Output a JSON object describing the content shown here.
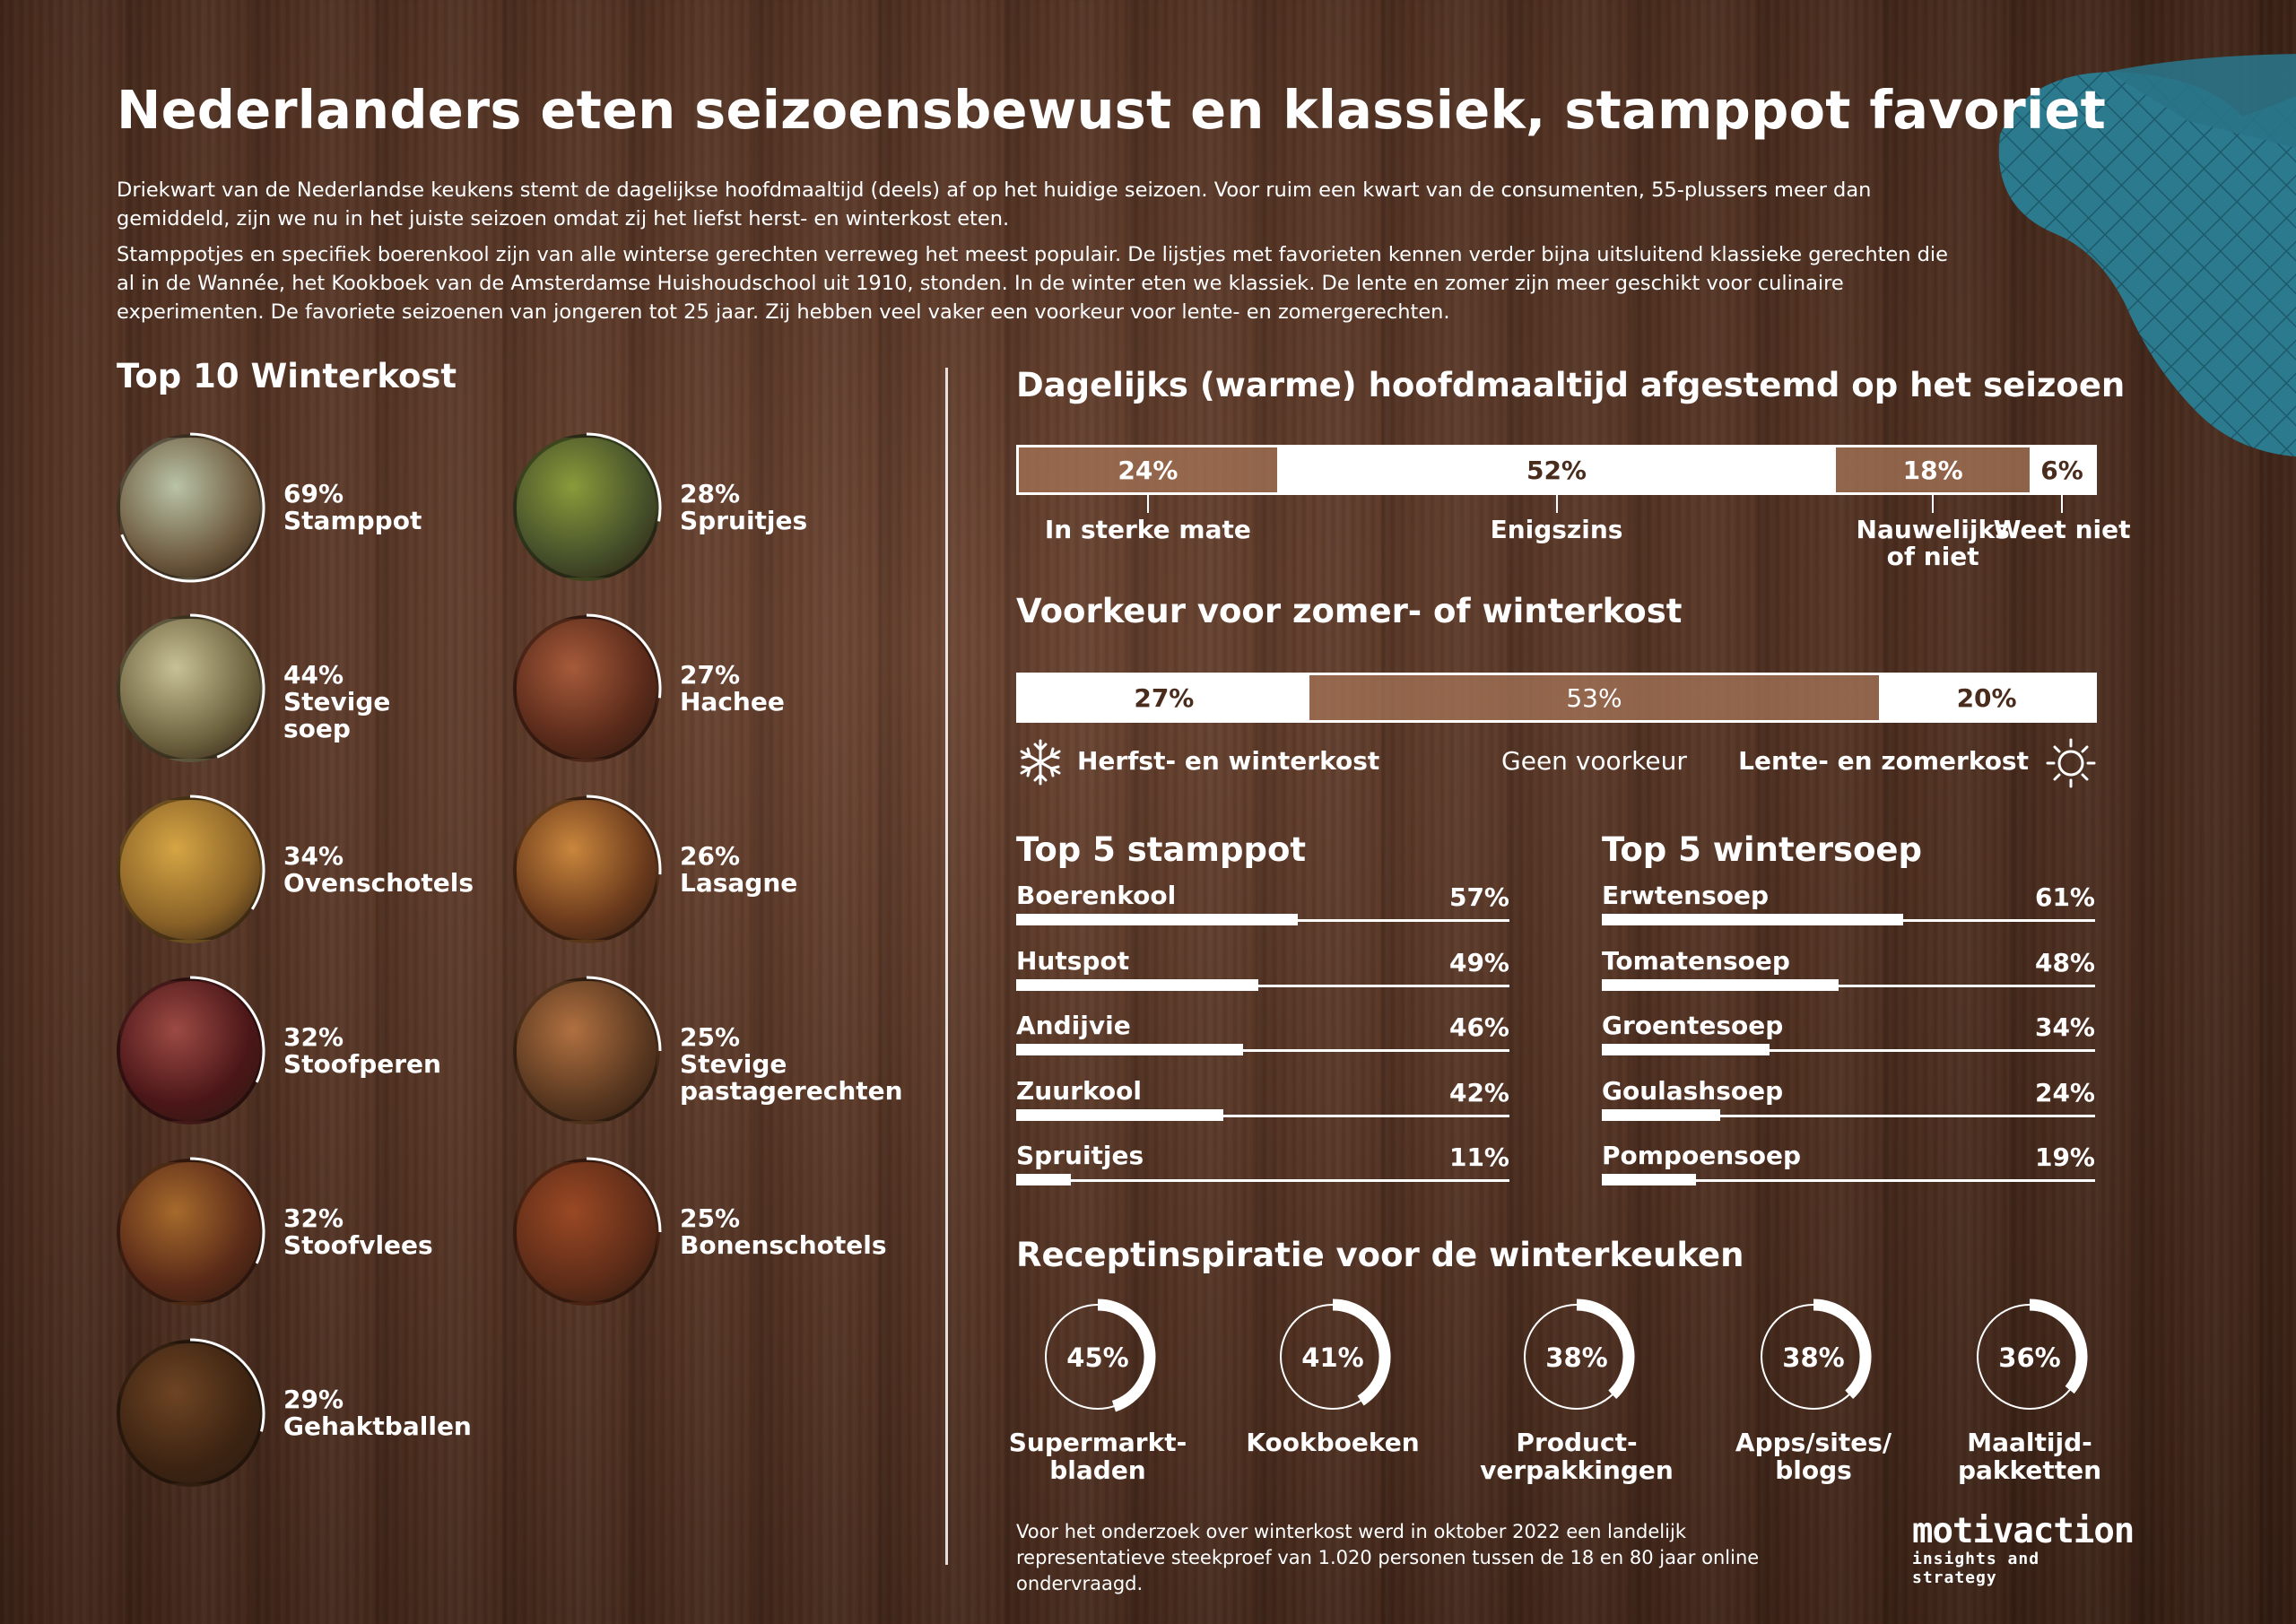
{
  "title": "Nederlanders eten seizoensbewust en klassiek, stamppot favoriet",
  "intro": [
    "Driekwart van de Nederlandse keukens stemt de dagelijkse hoofdmaaltijd (deels) af op het huidige seizoen. Voor ruim een kwart van de consumenten, 55-plussers meer dan gemiddeld, zijn we nu in het juiste seizoen omdat zij het liefst herst- en winterkost eten.",
    "Stamppotjes en specifiek boerenkool zijn van alle winterse gerechten verreweg het meest populair. De lijstjes met favorieten kennen verder bijna uitsluitend klassieke gerechten die al in de Wannée, het Kookboek van de Amsterdamse Huishoudschool uit 1910, stonden. In de winter eten we klassiek. De  lente en zomer zijn meer geschikt voor culinaire experimenten. De favoriete seizoenen van jongeren tot 25 jaar. Zij  hebben veel vaker een voorkeur voor lente- en zomergerechten."
  ],
  "sections": {
    "winterkost": "Top 10 Winterkost",
    "afgestemd": "Dagelijks (warme) hoofdmaaltijd afgestemd op het seizoen",
    "voorkeur": "Voorkeur voor zomer- of winterkost",
    "stamppot": "Top 5 stamppot",
    "wintersoep": "Top 5 wintersoep",
    "recept": "Receptinspiratie voor de winterkeuken"
  },
  "colors": {
    "white": "#ffffff",
    "wood": "#4e2f20",
    "segment_brown": "#a57658",
    "mitt": "#2e7f93"
  },
  "chart_data": [
    {
      "type": "bar",
      "title": "Top 10 Winterkost",
      "categories": [
        "Stamppot",
        "Stevige soep",
        "Ovenschotels",
        "Stoofperen",
        "Stoofvlees",
        "Gehaktballen",
        "Spruitjes",
        "Hachee",
        "Lasagne",
        "Stevige\npastagerechten",
        "Bonenschotels"
      ],
      "values": [
        69,
        44,
        34,
        32,
        32,
        29,
        28,
        27,
        26,
        25,
        25
      ],
      "value_labels": [
        "69%",
        "44%",
        "34%",
        "32%",
        "32%",
        "29%",
        "28%",
        "27%",
        "26%",
        "25%",
        "25%"
      ],
      "plate_colors": [
        [
          "#6e5a3f",
          "#b9c3a6"
        ],
        [
          "#6f6440",
          "#c7c095"
        ],
        [
          "#8a6227",
          "#d5a544"
        ],
        [
          "#4b1618",
          "#9c4a43"
        ],
        [
          "#5a2a18",
          "#a66a2c"
        ],
        [
          "#3d2412",
          "#6e4423"
        ],
        [
          "#45502a",
          "#8a9a3a"
        ],
        [
          "#5a2a1a",
          "#a65a3a"
        ],
        [
          "#6b3a1c",
          "#c9863c"
        ],
        [
          "#5a3820",
          "#b07040"
        ],
        [
          "#5e2c18",
          "#9a4824"
        ]
      ]
    },
    {
      "type": "bar",
      "stacked": true,
      "title": "Dagelijks (warme) hoofdmaaltijd afgestemd op het seizoen",
      "categories": [
        "In sterke mate",
        "Enigszins",
        "Nauwelijks\nof niet",
        "Weet niet"
      ],
      "values": [
        24,
        52,
        18,
        6
      ],
      "value_labels": [
        "24%",
        "52%",
        "18%",
        "6%"
      ],
      "styles": [
        "brown",
        "white",
        "brown",
        "white"
      ]
    },
    {
      "type": "bar",
      "stacked": true,
      "title": "Voorkeur voor zomer- of winterkost",
      "categories": [
        "Herfst- en winterkost",
        "Geen voorkeur",
        "Lente- en zomerkost"
      ],
      "values": [
        27,
        53,
        20
      ],
      "value_labels": [
        "27%",
        "53%",
        "20%"
      ],
      "styles": [
        "white",
        "brown",
        "white"
      ]
    },
    {
      "type": "bar",
      "title": "Top 5 stamppot",
      "categories": [
        "Boerenkool",
        "Hutspot",
        "Andijvie",
        "Zuurkool",
        "Spruitjes"
      ],
      "values": [
        57,
        49,
        46,
        42,
        11
      ],
      "value_labels": [
        "57%",
        "49%",
        "46%",
        "42%",
        "11%"
      ]
    },
    {
      "type": "bar",
      "title": "Top 5 wintersoep",
      "categories": [
        "Erwtensoep",
        "Tomatensoep",
        "Groentesoep",
        "Goulashsoep",
        "Pompoensoep"
      ],
      "values": [
        61,
        48,
        34,
        24,
        19
      ],
      "value_labels": [
        "61%",
        "48%",
        "34%",
        "24%",
        "19%"
      ]
    },
    {
      "type": "pie",
      "title": "Receptinspiratie voor de winterkeuken",
      "categories": [
        "Supermarkt-\nbladen",
        "Kookboeken",
        "Product-\nverpakkingen",
        "Apps/sites/\nblogs",
        "Maaltijd-\npakketten"
      ],
      "values": [
        45,
        41,
        38,
        38,
        36
      ],
      "value_labels": [
        "45%",
        "41%",
        "38%",
        "38%",
        "36%"
      ]
    }
  ],
  "footnote": "Voor het onderzoek over winterkost werd in oktober 2022 een landelijk representatieve steekproef van 1.020 personen tussen de 18 en 80 jaar online ondervraagd.",
  "logo": {
    "name": "motivaction",
    "tagline": "insights and strategy"
  },
  "icons": {
    "winter": "snowflake-icon",
    "summer": "sun-icon"
  }
}
